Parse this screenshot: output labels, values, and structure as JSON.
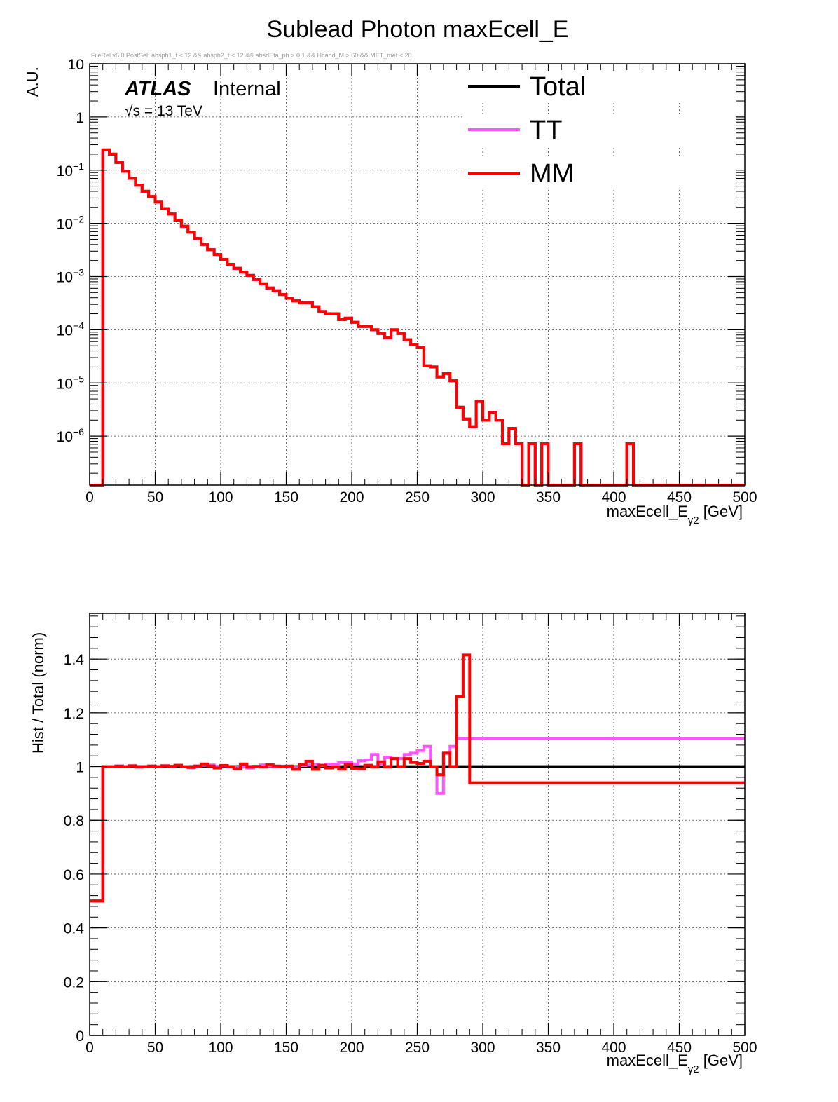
{
  "title": "Sublead Photon maxEcell_E",
  "cut_string": "FileRel v6.0 PostSel:  absph1_t < 12 && absph2_t < 12 && absdEta_ph > 0.1 && Hcand_M > 60 && MET_met < 20",
  "atlas_label": "ATLAS",
  "atlas_status": "Internal",
  "energy_label": "√s = 13 TeV",
  "colors": {
    "Total": "#000000",
    "TT": "#ff55ff",
    "MM": "#ff0000"
  },
  "chart_data": [
    {
      "type": "line",
      "title": "Sublead Photon maxEcell_E",
      "xlabel": "maxEcell_E",
      "xlabel_sub": "γ2",
      "xlabel_unit": "[GeV]",
      "ylabel": "A.U.",
      "xlim": [
        0,
        500
      ],
      "ylim": [
        1.2e-07,
        10
      ],
      "yscale": "log",
      "grid": true,
      "legend_position": "top-right",
      "bin_width": 5,
      "x_ticks": [
        "0",
        "50",
        "100",
        "150",
        "200",
        "250",
        "300",
        "350",
        "400",
        "450",
        "500"
      ],
      "y_ticks": [
        {
          "value": 10,
          "base": "10",
          "exp": ""
        },
        {
          "value": 1,
          "base": "1",
          "exp": ""
        },
        {
          "value": 0.1,
          "base": "10",
          "exp": "−1"
        },
        {
          "value": 0.01,
          "base": "10",
          "exp": "−2"
        },
        {
          "value": 0.001,
          "base": "10",
          "exp": "−3"
        },
        {
          "value": 0.0001,
          "base": "10",
          "exp": "−4"
        },
        {
          "value": 1e-05,
          "base": "10",
          "exp": "−5"
        },
        {
          "value": 1e-06,
          "base": "10",
          "exp": "−6"
        }
      ],
      "series": [
        {
          "name": "Total",
          "values": [
            0,
            0,
            0.24,
            0.2,
            0.14,
            0.095,
            0.07,
            0.052,
            0.04,
            0.032,
            0.025,
            0.019,
            0.015,
            0.0115,
            0.0088,
            0.0068,
            0.0052,
            0.004,
            0.0032,
            0.0026,
            0.0021,
            0.0017,
            0.00143,
            0.00121,
            0.00105,
            0.00088,
            0.00073,
            0.00061,
            0.00054,
            0.00046,
            0.00039,
            0.00035,
            0.00032,
            0.00032,
            0.00027,
            0.00022,
            0.0002,
            0.0002,
            0.000155,
            0.000165,
            0.000138,
            0.000115,
            0.000115,
            0.0001,
            8.5e-05,
            7e-05,
            0.0001,
            8.5e-05,
            6.5e-05,
            5.2e-05,
            4.6e-05,
            2.1e-05,
            2e-05,
            1.3e-05,
            1.5e-05,
            1.1e-05,
            3.5e-06,
            2.1e-06,
            1.5e-06,
            4.5e-06,
            2e-06,
            2.8e-06,
            2e-06,
            7.2e-07,
            1.4e-06,
            7.2e-07,
            1e-07,
            7.2e-07,
            1e-07,
            7.2e-07,
            1e-07,
            1e-07,
            1e-07,
            1e-07,
            7.2e-07,
            1e-07,
            1e-07,
            1e-07,
            1e-07,
            1e-07,
            1e-07,
            1e-07,
            7.2e-07,
            1e-07,
            1e-07,
            1e-07,
            1e-07,
            1e-07,
            1e-07,
            1e-07,
            1e-07,
            1e-07,
            1e-07,
            1e-07,
            1e-07,
            1e-07,
            1e-07,
            1e-07,
            1e-07,
            1e-07
          ]
        },
        {
          "name": "TT",
          "values": [
            0,
            0,
            0.24,
            0.2,
            0.14,
            0.095,
            0.07,
            0.052,
            0.04,
            0.032,
            0.025,
            0.019,
            0.015,
            0.0115,
            0.0088,
            0.0068,
            0.0052,
            0.004,
            0.0032,
            0.0026,
            0.0021,
            0.0017,
            0.00143,
            0.00121,
            0.00105,
            0.00088,
            0.00073,
            0.00061,
            0.00054,
            0.00046,
            0.00039,
            0.00035,
            0.00032,
            0.00032,
            0.00027,
            0.00022,
            0.0002,
            0.0002,
            0.000155,
            0.000165,
            0.000138,
            0.000115,
            0.000115,
            0.0001,
            8.5e-05,
            7e-05,
            0.0001,
            8.5e-05,
            6.5e-05,
            5.2e-05,
            4.6e-05,
            2.1e-05,
            2e-05,
            1.3e-05,
            1.5e-05,
            1.1e-05,
            3.5e-06,
            2.1e-06,
            1.5e-06,
            4.5e-06,
            2e-06,
            2.8e-06,
            2e-06,
            7.2e-07,
            1.4e-06,
            7.2e-07,
            1e-07,
            7.2e-07,
            1e-07,
            7.2e-07,
            1e-07,
            1e-07,
            1e-07,
            1e-07,
            7.2e-07,
            1e-07,
            1e-07,
            1e-07,
            1e-07,
            1e-07,
            1e-07,
            1e-07,
            7.2e-07,
            1e-07,
            1e-07,
            1e-07,
            1e-07,
            1e-07,
            1e-07,
            1e-07,
            1e-07,
            1e-07,
            1e-07,
            1e-07,
            1e-07,
            1e-07,
            1e-07,
            1e-07,
            1e-07,
            1e-07
          ]
        },
        {
          "name": "MM",
          "values": [
            0,
            0,
            0.24,
            0.2,
            0.14,
            0.095,
            0.07,
            0.052,
            0.04,
            0.032,
            0.025,
            0.019,
            0.015,
            0.0115,
            0.0088,
            0.0068,
            0.0052,
            0.004,
            0.0032,
            0.0026,
            0.0021,
            0.0017,
            0.00143,
            0.00121,
            0.00105,
            0.00088,
            0.00073,
            0.00061,
            0.00054,
            0.00046,
            0.00039,
            0.00035,
            0.00032,
            0.00032,
            0.00027,
            0.00022,
            0.0002,
            0.0002,
            0.000155,
            0.000165,
            0.000138,
            0.000115,
            0.000115,
            0.0001,
            8.5e-05,
            7e-05,
            0.0001,
            8.5e-05,
            6.5e-05,
            5.2e-05,
            4.6e-05,
            2.1e-05,
            2e-05,
            1.3e-05,
            1.5e-05,
            1.1e-05,
            3.5e-06,
            2.1e-06,
            1.5e-06,
            4.5e-06,
            2e-06,
            2.8e-06,
            2e-06,
            7.2e-07,
            1.4e-06,
            7.2e-07,
            1e-07,
            7.2e-07,
            1e-07,
            7.2e-07,
            1e-07,
            1e-07,
            1e-07,
            1e-07,
            7.2e-07,
            1e-07,
            1e-07,
            1e-07,
            1e-07,
            1e-07,
            1e-07,
            1e-07,
            7.2e-07,
            1e-07,
            1e-07,
            1e-07,
            1e-07,
            1e-07,
            1e-07,
            1e-07,
            1e-07,
            1e-07,
            1e-07,
            1e-07,
            1e-07,
            1e-07,
            1e-07,
            1e-07,
            1e-07,
            1e-07
          ]
        }
      ]
    },
    {
      "type": "line",
      "xlabel": "maxEcell_E",
      "xlabel_sub": "γ2",
      "xlabel_unit": "[GeV]",
      "ylabel": "Hist / Total (norm)",
      "xlim": [
        0,
        500
      ],
      "ylim": [
        0,
        1.57
      ],
      "yscale": "linear",
      "grid": true,
      "bin_width": 5,
      "x_ticks": [
        "0",
        "50",
        "100",
        "150",
        "200",
        "250",
        "300",
        "350",
        "400",
        "450",
        "500"
      ],
      "y_ticks": [
        {
          "value": 0,
          "label": "0"
        },
        {
          "value": 0.2,
          "label": "0.2"
        },
        {
          "value": 0.4,
          "label": "0.4"
        },
        {
          "value": 0.6,
          "label": "0.6"
        },
        {
          "value": 0.8,
          "label": "0.8"
        },
        {
          "value": 1,
          "label": "1"
        },
        {
          "value": 1.2,
          "label": "1.2"
        },
        {
          "value": 1.4,
          "label": "1.4"
        }
      ],
      "series": [
        {
          "name": "Total",
          "values": [
            0.5,
            0.5,
            1,
            1,
            1,
            1,
            1,
            1,
            1,
            1,
            1,
            1,
            1,
            1,
            1,
            1,
            1,
            1,
            1,
            1,
            1,
            1,
            1,
            1,
            1,
            1,
            1,
            1,
            1,
            1,
            1,
            1,
            1,
            1,
            1,
            1,
            1,
            1,
            1,
            1,
            1,
            1,
            1,
            1,
            1,
            1,
            1,
            1,
            1,
            1,
            1,
            1,
            1,
            1,
            1,
            1,
            1,
            1,
            1,
            1,
            1,
            1,
            1,
            1,
            1,
            1,
            1,
            1,
            1,
            1,
            1,
            1,
            1,
            1,
            1,
            1,
            1,
            1,
            1,
            1,
            1,
            1,
            1,
            1,
            1,
            1,
            1,
            1,
            1,
            1,
            1,
            1,
            1,
            1,
            1,
            1,
            1,
            1,
            1,
            1
          ]
        },
        {
          "name": "TT",
          "values": [
            0.5,
            0.5,
            1,
            1,
            1.002,
            1,
            1.003,
            0.998,
            1,
            1.002,
            0.999,
            1.003,
            1.001,
            1.005,
            1.0,
            0.997,
            1.002,
            1.005,
            1.006,
            0.999,
            1.003,
            0.998,
            0.996,
            0.998,
            0.995,
            1.001,
            1.006,
            1.002,
            0.998,
            1.001,
            0.998,
            0.996,
            1.004,
            1.006,
            1.008,
            1.004,
            1.009,
            1.009,
            1.015,
            1.016,
            1.01,
            1.022,
            1.025,
            1.045,
            1.012,
            1.035,
            1.03,
            1.03,
            1.045,
            1.05,
            1.06,
            1.075,
            1.0,
            0.9,
            1.05,
            1.075,
            1.105,
            1.105,
            1.105,
            1.105,
            1.105,
            1.105,
            1.105,
            1.105,
            1.105,
            1.105,
            1.105,
            1.105,
            1.105,
            1.105,
            1.105,
            1.105,
            1.105,
            1.105,
            1.105,
            1.105,
            1.105,
            1.105,
            1.105,
            1.105,
            1.105,
            1.105,
            1.105,
            1.105,
            1.105,
            1.105,
            1.105,
            1.105,
            1.105,
            1.105,
            1.105,
            1.105,
            1.105,
            1.105,
            1.105,
            1.105,
            1.105,
            1.105,
            1.105,
            1.105
          ]
        },
        {
          "name": "MM",
          "values": [
            0.5,
            0.5,
            1,
            1,
            1.002,
            1,
            1.003,
            0.998,
            1,
            1.002,
            0.999,
            1.003,
            1.001,
            1.005,
            0.999,
            0.997,
            1.002,
            1.01,
            1.002,
            0.995,
            1.004,
            1.0,
            0.992,
            1.01,
            0.998,
            1.001,
            0.998,
            1.007,
            1.002,
            1.001,
            1.002,
            0.99,
            1.008,
            1.02,
            0.99,
            1.005,
            0.995,
            0.998,
            0.991,
            1.008,
            0.993,
            0.992,
            1.005,
            0.998,
            1.018,
            0.998,
            1.03,
            1.0,
            1.03,
            1.015,
            1.012,
            1.02,
            1.0,
            0.97,
            1.05,
            1.0,
            1.26,
            1.415,
            0.94,
            0.94,
            0.94,
            0.94,
            0.94,
            0.94,
            0.94,
            0.94,
            0.94,
            0.94,
            0.94,
            0.94,
            0.94,
            0.94,
            0.94,
            0.94,
            0.94,
            0.94,
            0.94,
            0.94,
            0.94,
            0.94,
            0.94,
            0.94,
            0.94,
            0.94,
            0.94,
            0.94,
            0.94,
            0.94,
            0.94,
            0.94,
            0.94,
            0.94,
            0.94,
            0.94,
            0.94,
            0.94,
            0.94,
            0.94,
            0.94,
            0.94
          ]
        }
      ]
    }
  ]
}
